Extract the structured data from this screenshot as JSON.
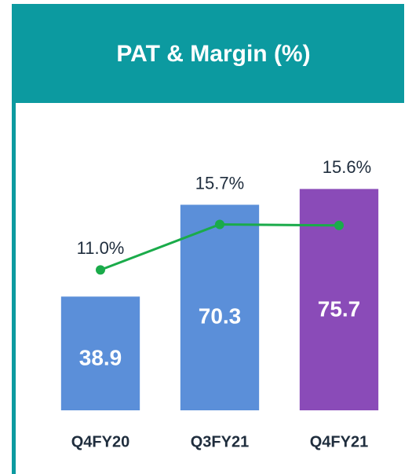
{
  "chart_data": {
    "type": "bar",
    "title": "PAT & Margin (%)",
    "categories": [
      "Q4FY20",
      "Q3FY21",
      "Q4FY21"
    ],
    "series": [
      {
        "type": "bar",
        "colors": [
          "#5b8fd9",
          "#5b8fd9",
          "#8a4bb8"
        ],
        "values": [
          38.9,
          70.3,
          75.7
        ]
      },
      {
        "type": "line",
        "axis": "y2",
        "color": "#1aab4a",
        "values": [
          11.0,
          15.7,
          15.6
        ],
        "value_labels": [
          "11.0%",
          "15.7%",
          "15.6%"
        ]
      }
    ],
    "ylim": [
      0,
      100
    ],
    "y2lim": [
      -3.5,
      26.7
    ]
  }
}
